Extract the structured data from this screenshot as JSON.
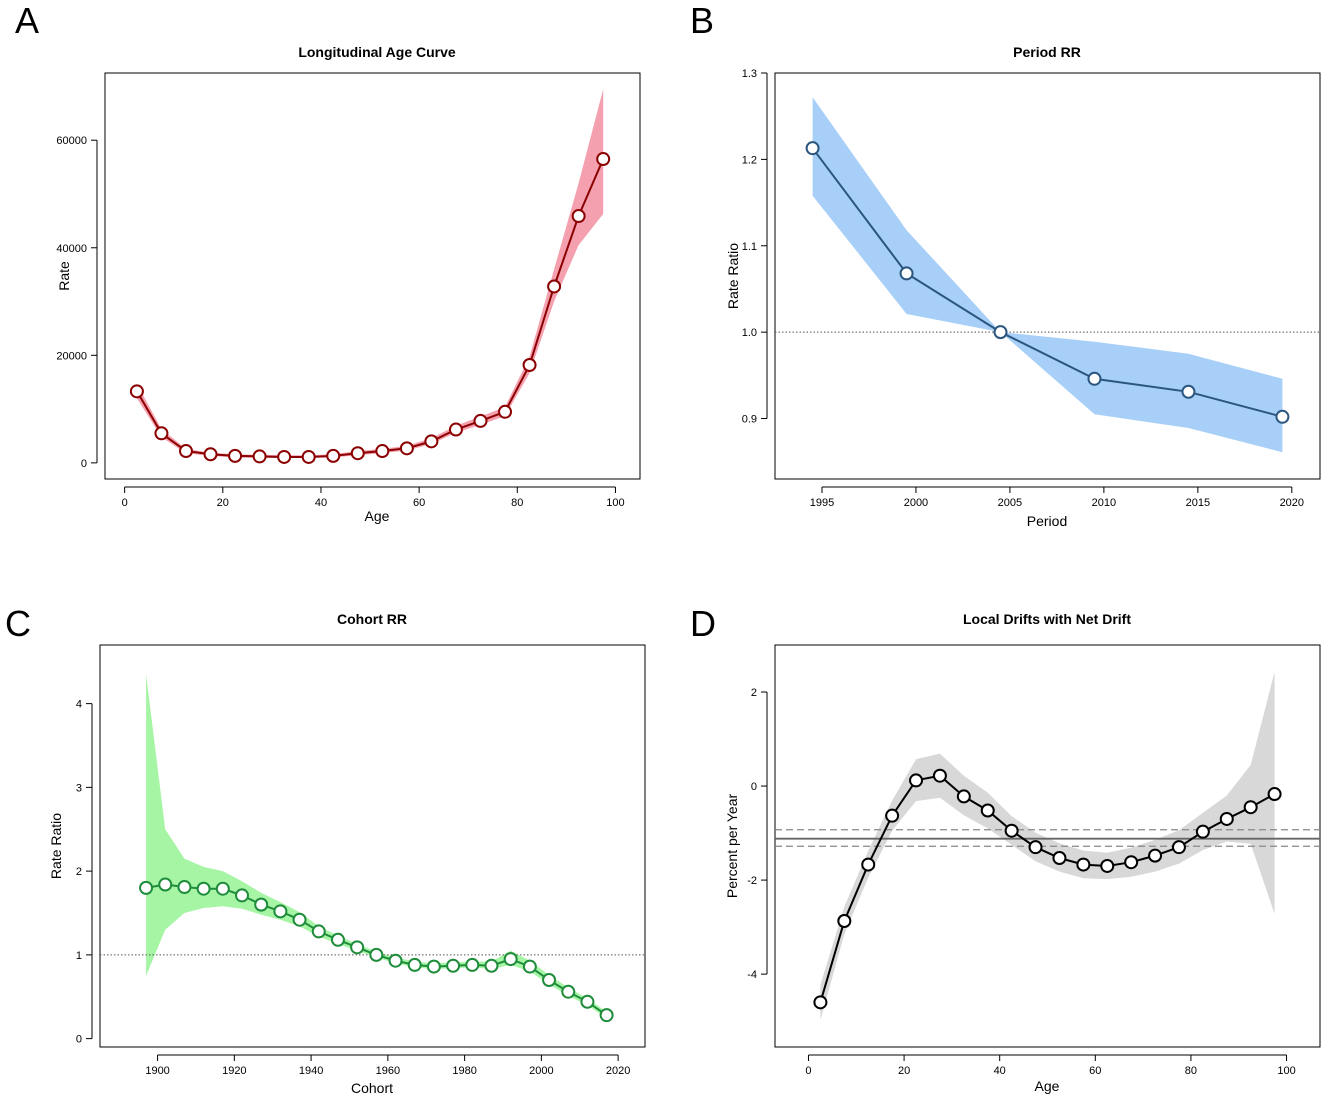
{
  "figure": {
    "panels": [
      "A",
      "B",
      "C",
      "D"
    ]
  },
  "colors": {
    "a_line": "#8b0000",
    "a_band": "#f4a0ae",
    "b_line": "#2a5680",
    "b_band": "#a8cff8",
    "c_line": "#1e8c3a",
    "c_band": "#a5f5a5",
    "d_line": "#000000",
    "d_band": "#d8d8d8"
  },
  "chart_data": [
    {
      "id": "A",
      "type": "line",
      "title": "Longitudinal Age Curve",
      "xlabel": "Age",
      "ylabel": "Rate",
      "xlim": [
        -4,
        105
      ],
      "ylim": [
        -3000,
        72500
      ],
      "xticks": [
        0,
        20,
        40,
        60,
        80,
        100
      ],
      "yticks": [
        0,
        20000,
        40000,
        60000
      ],
      "x": [
        2.5,
        7.5,
        12.5,
        17.5,
        22.5,
        27.5,
        32.5,
        37.5,
        42.5,
        47.5,
        52.5,
        57.5,
        62.5,
        67.5,
        72.5,
        77.5,
        82.5,
        87.5,
        92.5,
        97.5
      ],
      "values": [
        13300,
        5500,
        2200,
        1600,
        1300,
        1200,
        1100,
        1100,
        1300,
        1800,
        2200,
        2700,
        4000,
        6200,
        7800,
        9500,
        18200,
        32800,
        45900,
        56500
      ],
      "lower": [
        12000,
        4800,
        1800,
        1300,
        1000,
        900,
        900,
        900,
        1000,
        1400,
        1800,
        2300,
        3500,
        5600,
        7100,
        8700,
        16700,
        30000,
        40500,
        46300
      ],
      "upper": [
        14700,
        6300,
        2600,
        1900,
        1600,
        1500,
        1400,
        1400,
        1600,
        2200,
        2600,
        3200,
        4600,
        6900,
        8600,
        10400,
        19800,
        36000,
        52000,
        69500
      ],
      "reference_line": null
    },
    {
      "id": "B",
      "type": "line",
      "title": "Period RR",
      "xlabel": "Period",
      "ylabel": "Rate Ratio",
      "xlim": [
        1992.5,
        2021.5
      ],
      "ylim": [
        0.83,
        1.3
      ],
      "xticks": [
        1995,
        2000,
        2005,
        2010,
        2015,
        2020
      ],
      "yticks": [
        0.9,
        1.0,
        1.1,
        1.2,
        1.3
      ],
      "ytick_labels": [
        "0.9",
        "1.0",
        "1.1",
        "1.2",
        "1.3"
      ],
      "x": [
        1994.5,
        1999.5,
        2004.5,
        2009.5,
        2014.5,
        2019.5
      ],
      "values": [
        1.213,
        1.068,
        1.0,
        0.946,
        0.931,
        0.902
      ],
      "lower": [
        1.158,
        1.021,
        1.0,
        0.905,
        0.889,
        0.861
      ],
      "upper": [
        1.272,
        1.118,
        1.0,
        0.989,
        0.975,
        0.946
      ],
      "reference_line": 1.0
    },
    {
      "id": "C",
      "type": "line",
      "title": "Cohort RR",
      "xlabel": "Cohort",
      "ylabel": "Rate Ratio",
      "xlim": [
        1885,
        2027
      ],
      "ylim": [
        -0.1,
        4.7
      ],
      "xticks": [
        1900,
        1920,
        1940,
        1960,
        1980,
        2000,
        2020
      ],
      "yticks": [
        0,
        1,
        2,
        3,
        4
      ],
      "x": [
        1897,
        1902,
        1907,
        1912,
        1917,
        1922,
        1927,
        1932,
        1937,
        1942,
        1947,
        1952,
        1957,
        1962,
        1967,
        1972,
        1977,
        1982,
        1987,
        1992,
        1997,
        2002,
        2007,
        2012,
        2017
      ],
      "values": [
        1.8,
        1.84,
        1.81,
        1.79,
        1.79,
        1.71,
        1.6,
        1.52,
        1.42,
        1.28,
        1.18,
        1.09,
        1.0,
        0.93,
        0.88,
        0.86,
        0.87,
        0.88,
        0.87,
        0.95,
        0.86,
        0.7,
        0.56,
        0.44,
        0.28
      ],
      "lower": [
        0.75,
        1.3,
        1.5,
        1.56,
        1.58,
        1.55,
        1.48,
        1.42,
        1.34,
        1.22,
        1.13,
        1.05,
        0.97,
        0.9,
        0.85,
        0.83,
        0.84,
        0.85,
        0.83,
        0.88,
        0.8,
        0.65,
        0.51,
        0.4,
        0.24
      ],
      "upper": [
        4.35,
        2.5,
        2.15,
        2.05,
        2.0,
        1.88,
        1.74,
        1.63,
        1.51,
        1.34,
        1.23,
        1.13,
        1.04,
        0.97,
        0.92,
        0.9,
        0.91,
        0.92,
        0.92,
        1.05,
        0.93,
        0.76,
        0.61,
        0.48,
        0.32
      ],
      "reference_line": 1.0
    },
    {
      "id": "D",
      "type": "line",
      "title": "Local Drifts with Net Drift",
      "xlabel": "Age",
      "ylabel": "Percent per Year",
      "xlim": [
        -7,
        107
      ],
      "ylim": [
        -5.55,
        3.0
      ],
      "xticks": [
        0,
        20,
        40,
        60,
        80,
        100
      ],
      "yticks": [
        -4,
        -2,
        0,
        2
      ],
      "x": [
        2.5,
        7.5,
        12.5,
        17.5,
        22.5,
        27.5,
        32.5,
        37.5,
        42.5,
        47.5,
        52.5,
        57.5,
        62.5,
        67.5,
        72.5,
        77.5,
        82.5,
        87.5,
        92.5,
        97.5
      ],
      "values": [
        -4.6,
        -2.87,
        -1.67,
        -0.63,
        0.12,
        0.22,
        -0.22,
        -0.52,
        -0.95,
        -1.3,
        -1.53,
        -1.67,
        -1.7,
        -1.62,
        -1.48,
        -1.3,
        -0.97,
        -0.7,
        -0.45,
        -0.17
      ],
      "lower": [
        -4.98,
        -3.15,
        -1.95,
        -0.95,
        -0.32,
        -0.25,
        -0.62,
        -0.9,
        -1.25,
        -1.6,
        -1.82,
        -1.96,
        -1.98,
        -1.93,
        -1.82,
        -1.65,
        -1.36,
        -1.18,
        -1.23,
        -2.72
      ],
      "upper": [
        -4.23,
        -2.57,
        -1.38,
        -0.31,
        0.57,
        0.69,
        0.22,
        -0.14,
        -0.64,
        -0.99,
        -1.22,
        -1.37,
        -1.42,
        -1.31,
        -1.14,
        -0.94,
        -0.57,
        -0.2,
        0.45,
        2.43
      ],
      "net_drift": -1.12,
      "net_drift_ci": [
        -1.28,
        -0.93
      ]
    }
  ]
}
